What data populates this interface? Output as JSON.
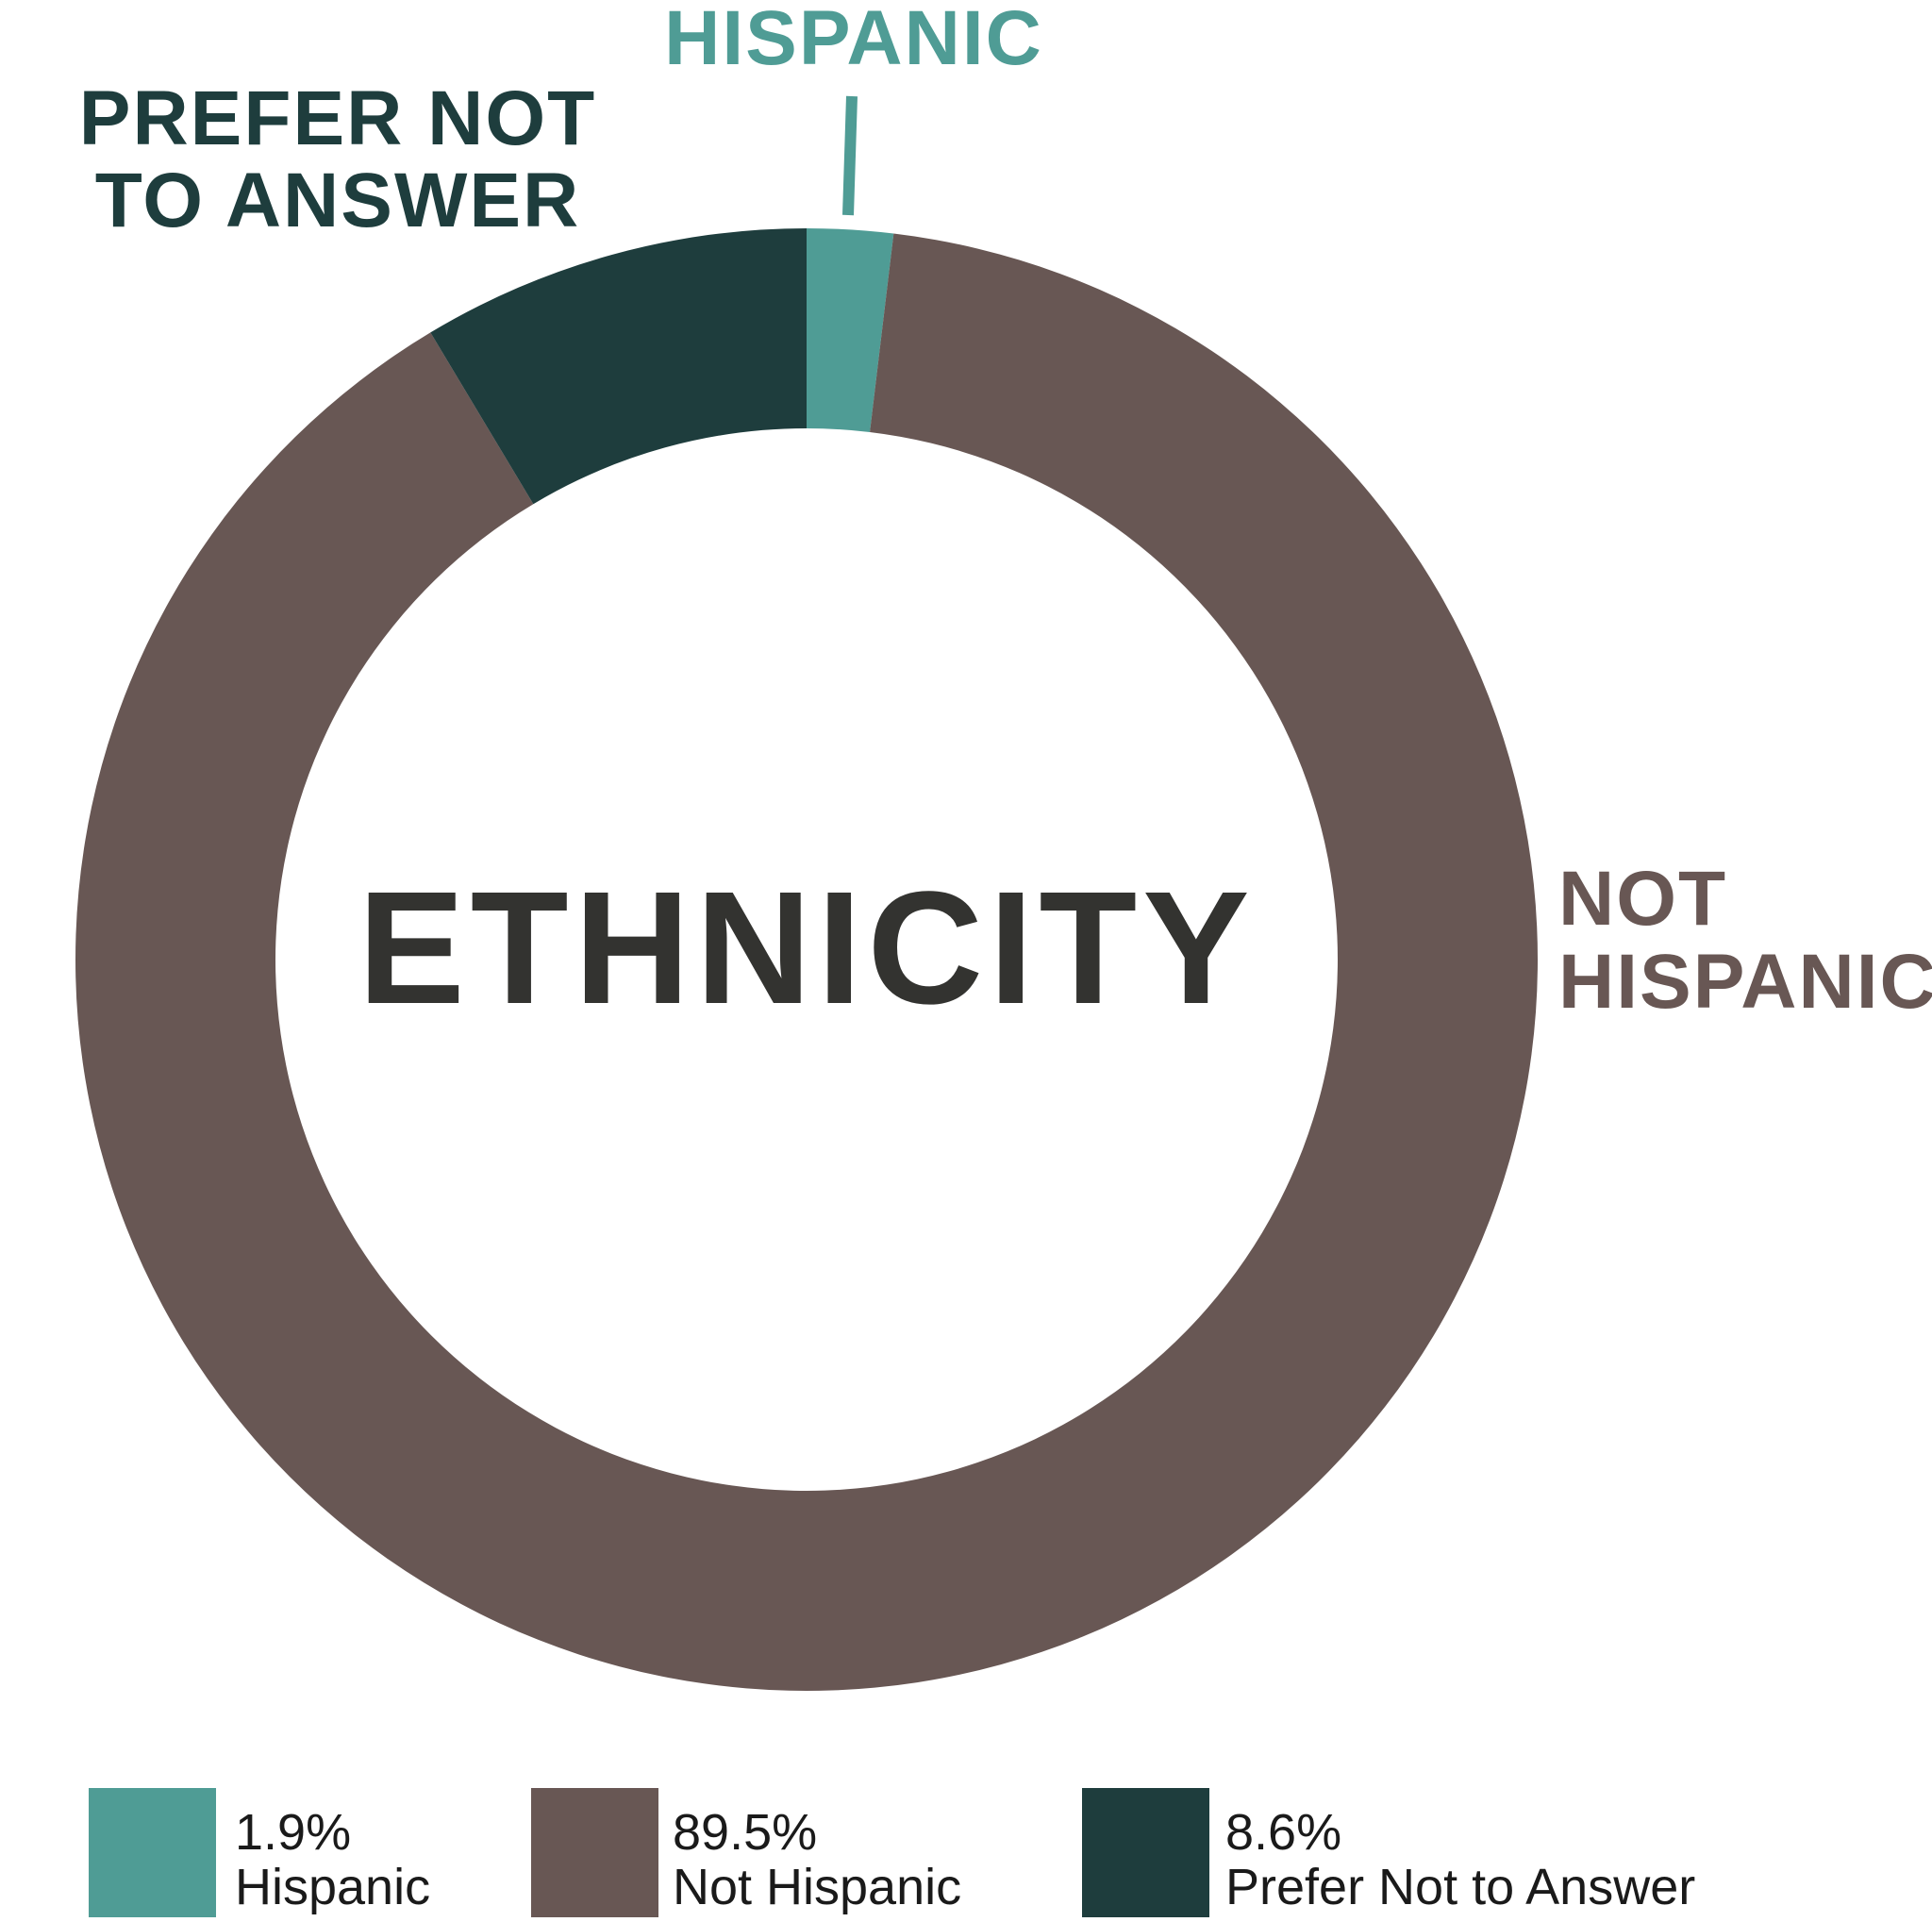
{
  "colors": {
    "hispanic": "#4f9c95",
    "not_hispanic": "#685754",
    "prefer_not": "#1e3d3d",
    "title": "#333330",
    "background": "#ffffff"
  },
  "chart_data": {
    "type": "pie",
    "donut": true,
    "title": "ETHNICITY",
    "slices": [
      {
        "label": "Hispanic",
        "value": 1.9,
        "color": "#4f9c95",
        "callout": "HISPANIC"
      },
      {
        "label": "Not Hispanic",
        "value": 89.5,
        "color": "#685754",
        "callout": "NOT HISPANIC"
      },
      {
        "label": "Prefer Not to Answer",
        "value": 8.6,
        "color": "#1e3d3d",
        "callout": "PREFER NOT TO ANSWER"
      }
    ],
    "legend_placement": "bottom"
  },
  "callouts": {
    "hispanic": "HISPANIC",
    "not_hispanic_line1": "NOT",
    "not_hispanic_line2": "HISPANIC",
    "prefer_line1": "PREFER NOT",
    "prefer_line2": "TO ANSWER"
  },
  "legend": [
    {
      "value": "1.9%",
      "label": "Hispanic",
      "color": "#4f9c95"
    },
    {
      "value": "89.5%",
      "label": "Not Hispanic",
      "color": "#685754"
    },
    {
      "value": "8.6%",
      "label": "Prefer Not to Answer",
      "color": "#1e3d3d"
    }
  ]
}
